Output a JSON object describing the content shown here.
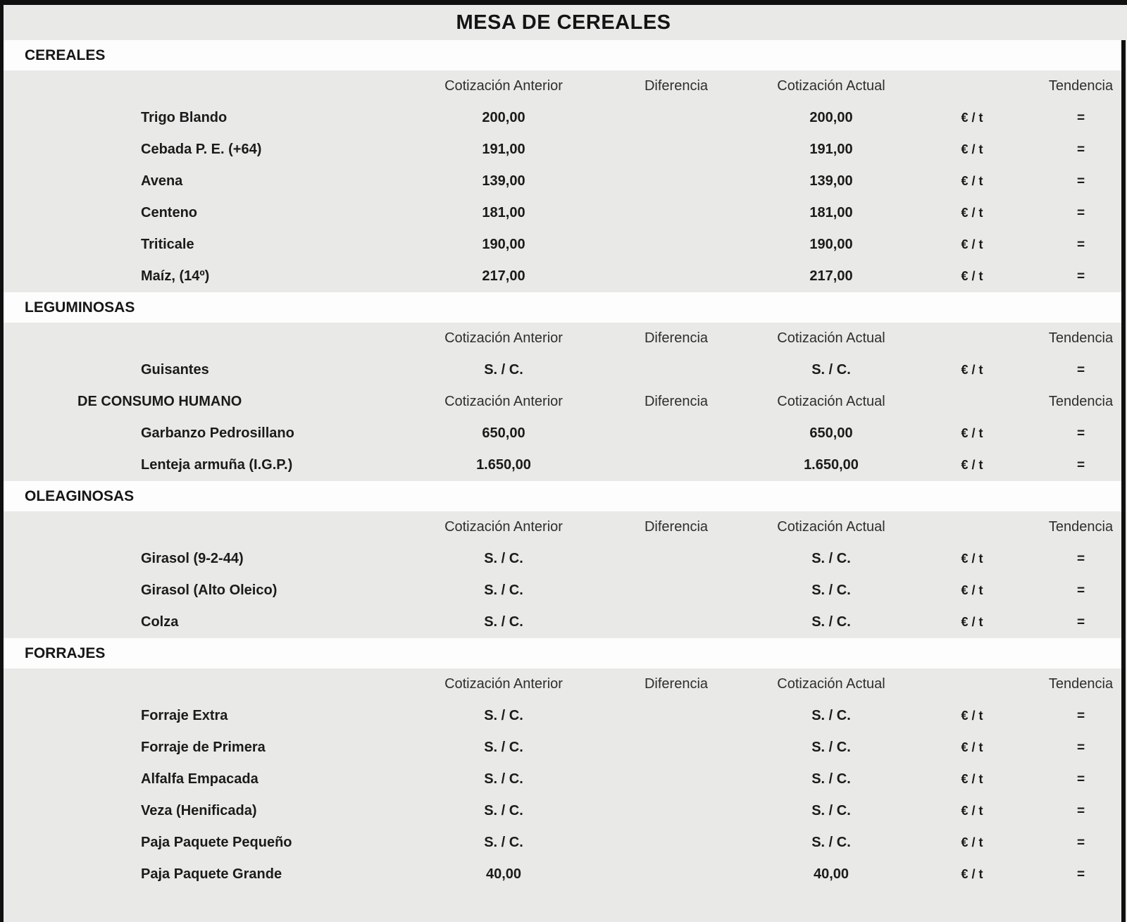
{
  "title": "MESA DE CEREALES",
  "columns": {
    "anterior": "Cotización Anterior",
    "diferencia": "Diferencia",
    "actual": "Cotización Actual",
    "tendencia": "Tendencia"
  },
  "colors": {
    "background": "#e9e9e7",
    "band": "#fdfdfd",
    "border": "#101010",
    "text": "#1b1b1b"
  },
  "sections": [
    {
      "name": "CEREALES",
      "groups": [
        {
          "label": "",
          "items": [
            {
              "label": "Trigo Blando",
              "anterior": "200,00",
              "diferencia": "",
              "actual": "200,00",
              "unit": "€ / t",
              "tendencia": "="
            },
            {
              "label": "Cebada P. E. (+64)",
              "anterior": "191,00",
              "diferencia": "",
              "actual": "191,00",
              "unit": "€ / t",
              "tendencia": "="
            },
            {
              "label": "Avena",
              "anterior": "139,00",
              "diferencia": "",
              "actual": "139,00",
              "unit": "€ / t",
              "tendencia": "="
            },
            {
              "label": "Centeno",
              "anterior": "181,00",
              "diferencia": "",
              "actual": "181,00",
              "unit": "€ / t",
              "tendencia": "="
            },
            {
              "label": "Triticale",
              "anterior": "190,00",
              "diferencia": "",
              "actual": "190,00",
              "unit": "€ / t",
              "tendencia": "="
            },
            {
              "label": "Maíz, (14º)",
              "anterior": "217,00",
              "diferencia": "",
              "actual": "217,00",
              "unit": "€ / t",
              "tendencia": "="
            }
          ]
        }
      ]
    },
    {
      "name": "LEGUMINOSAS",
      "groups": [
        {
          "label": "",
          "items": [
            {
              "label": "Guisantes",
              "anterior": "S. / C.",
              "diferencia": "",
              "actual": "S. / C.",
              "unit": "€ / t",
              "tendencia": "="
            }
          ]
        },
        {
          "label": "DE CONSUMO HUMANO",
          "items": [
            {
              "label": "Garbanzo Pedrosillano",
              "anterior": "650,00",
              "diferencia": "",
              "actual": "650,00",
              "unit": "€ / t",
              "tendencia": "="
            },
            {
              "label": "Lenteja armuña (I.G.P.)",
              "anterior": "1.650,00",
              "diferencia": "",
              "actual": "1.650,00",
              "unit": "€ / t",
              "tendencia": "="
            }
          ]
        }
      ]
    },
    {
      "name": "OLEAGINOSAS",
      "groups": [
        {
          "label": "",
          "items": [
            {
              "label": "Girasol (9-2-44)",
              "anterior": "S. / C.",
              "diferencia": "",
              "actual": "S. / C.",
              "unit": "€ / t",
              "tendencia": "="
            },
            {
              "label": "Girasol (Alto Oleico)",
              "anterior": "S. / C.",
              "diferencia": "",
              "actual": "S. / C.",
              "unit": "€ / t",
              "tendencia": "="
            },
            {
              "label": "Colza",
              "anterior": "S. / C.",
              "diferencia": "",
              "actual": "S. / C.",
              "unit": "€ / t",
              "tendencia": "="
            }
          ]
        }
      ]
    },
    {
      "name": "FORRAJES",
      "groups": [
        {
          "label": "",
          "items": [
            {
              "label": "Forraje Extra",
              "anterior": "S. / C.",
              "diferencia": "",
              "actual": "S. / C.",
              "unit": "€ / t",
              "tendencia": "="
            },
            {
              "label": "Forraje de Primera",
              "anterior": "S. / C.",
              "diferencia": "",
              "actual": "S. / C.",
              "unit": "€ / t",
              "tendencia": "="
            },
            {
              "label": "Alfalfa Empacada",
              "anterior": "S. / C.",
              "diferencia": "",
              "actual": "S. / C.",
              "unit": "€ / t",
              "tendencia": "="
            },
            {
              "label": "Veza (Henificada)",
              "anterior": "S. / C.",
              "diferencia": "",
              "actual": "S. / C.",
              "unit": "€ / t",
              "tendencia": "="
            },
            {
              "label": "Paja Paquete Pequeño",
              "anterior": "S. / C.",
              "diferencia": "",
              "actual": "S. / C.",
              "unit": "€ / t",
              "tendencia": "="
            },
            {
              "label": "Paja Paquete Grande",
              "anterior": "40,00",
              "diferencia": "",
              "actual": "40,00",
              "unit": "€ / t",
              "tendencia": "="
            }
          ]
        }
      ]
    }
  ]
}
